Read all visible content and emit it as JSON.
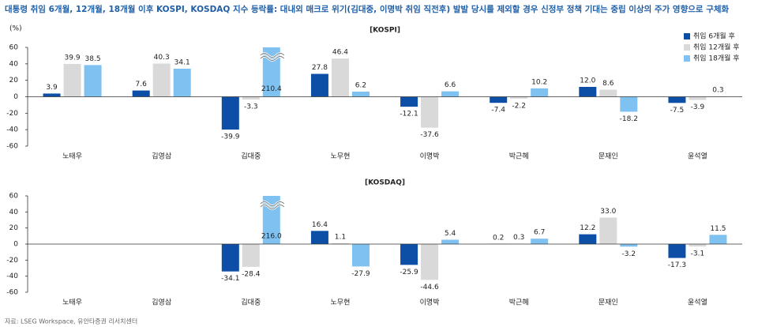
{
  "title": "대통령 취임 6개월, 12개월, 18개월 이후 KOSPI, KOSDAQ 지수 등락률: 대내외 매크로 위기(김대중, 이명박 취임 직전후) 발발 당시를 제외할 경우 신정부 정책 기대는 중립 이상의 주가 영향으로 구체화",
  "source": "자료: LSEG Workspace, 유안타증권 리서치센터",
  "chart_data": [
    {
      "type": "bar",
      "title": "[KOSPI]",
      "y_unit": "(%)",
      "categories": [
        "노태우",
        "김영삼",
        "김대중",
        "노무현",
        "이명박",
        "박근혜",
        "문재인",
        "윤석열"
      ],
      "series": [
        {
          "name": "취임 6개월 후",
          "color": "#0d4ea6",
          "values": [
            3.9,
            7.6,
            -39.9,
            27.8,
            -12.1,
            -7.4,
            12.0,
            -7.5
          ],
          "value_labels": [
            "3.9",
            "7.6",
            "-39.9",
            "27.8",
            "-12.1",
            "-7.4",
            "12.0",
            "-7.5"
          ]
        },
        {
          "name": "취임 12개월 후",
          "color": "#d9d9d9",
          "values": [
            39.9,
            40.3,
            -3.3,
            46.4,
            -37.6,
            -2.2,
            8.6,
            -3.9
          ],
          "value_labels": [
            "39.9",
            "40.3",
            "-3.3",
            "46.4",
            "-37.6",
            "-2.2",
            "8.6",
            "-3.9"
          ]
        },
        {
          "name": "취임 18개월 후",
          "color": "#7fc1f0",
          "values": [
            38.5,
            34.1,
            210.4,
            6.2,
            6.6,
            10.2,
            -18.2,
            0.3
          ],
          "value_labels": [
            "38.5",
            "34.1",
            "210.4",
            "6.2",
            "6.6",
            "10.2",
            "-18.2",
            "0.3"
          ]
        }
      ],
      "ylim": [
        -60,
        60
      ],
      "yticks": [
        -60,
        -40,
        -20,
        0,
        20,
        40,
        60
      ],
      "legend": "upper right"
    },
    {
      "type": "bar",
      "title": "[KOSDAQ]",
      "categories": [
        "노태우",
        "김영삼",
        "김대중",
        "노무현",
        "이명박",
        "박근혜",
        "문재인",
        "윤석열"
      ],
      "series": [
        {
          "color": "#0d4ea6",
          "values": [
            null,
            null,
            -34.1,
            16.4,
            -25.9,
            0.2,
            12.2,
            -17.3
          ],
          "value_labels": [
            null,
            null,
            "-34.1",
            "16.4",
            "-25.9",
            "0.2",
            "12.2",
            "-17.3"
          ]
        },
        {
          "color": "#d9d9d9",
          "values": [
            null,
            null,
            -28.4,
            1.1,
            -44.6,
            0.3,
            33.0,
            -3.1
          ],
          "value_labels": [
            null,
            null,
            "-28.4",
            "1.1",
            "-44.6",
            "0.3",
            "33.0",
            "-3.1"
          ]
        },
        {
          "color": "#7fc1f0",
          "values": [
            null,
            null,
            216.0,
            -27.9,
            5.4,
            6.7,
            -3.2,
            11.5
          ],
          "value_labels": [
            null,
            null,
            "216.0",
            "-27.9",
            "5.4",
            "6.7",
            "-3.2",
            "11.5"
          ]
        }
      ],
      "ylim": [
        -60,
        60
      ],
      "yticks": [
        -60,
        -40,
        -20,
        0,
        20,
        40,
        60
      ]
    }
  ]
}
